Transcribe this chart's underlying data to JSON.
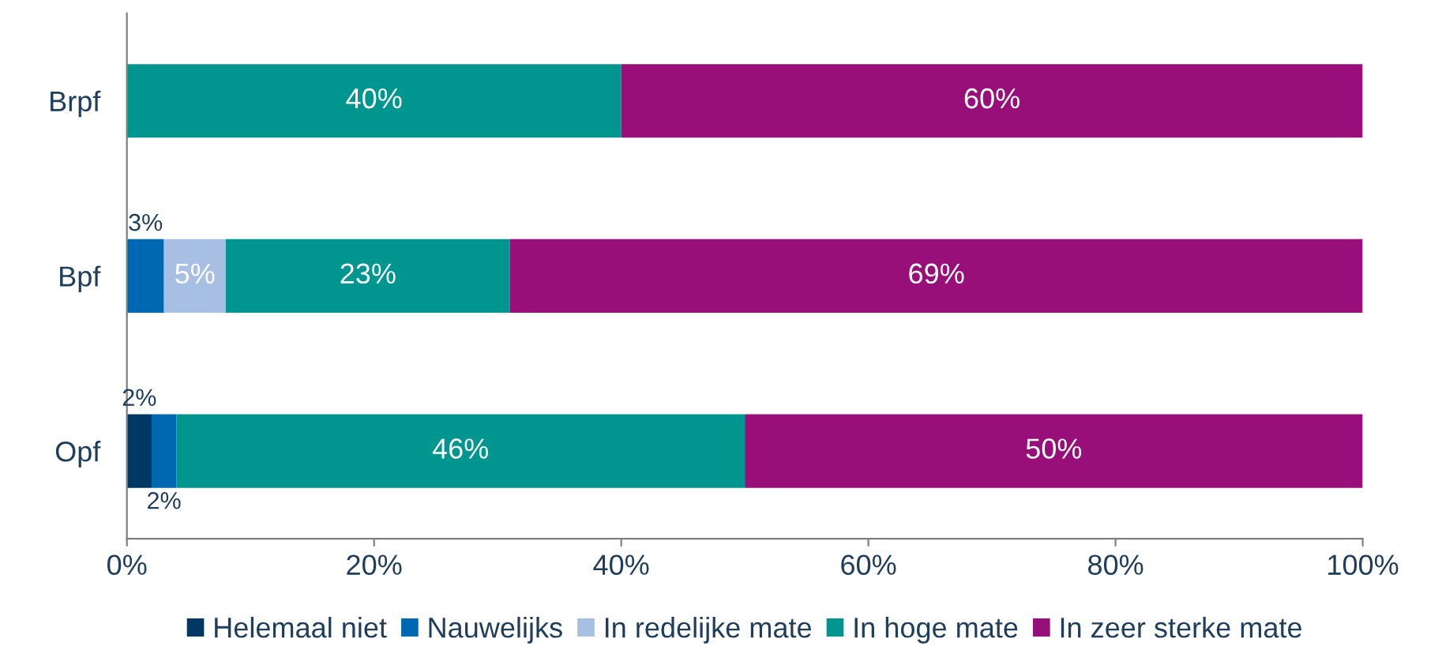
{
  "chart_data": {
    "type": "bar",
    "orientation": "horizontal",
    "stacked": true,
    "categories": [
      "Brpf",
      "Bpf",
      "Opf"
    ],
    "series": [
      {
        "name": "Helemaal niet",
        "color": "#003865",
        "values": [
          0,
          0,
          2
        ],
        "value_labels": [
          null,
          null,
          "2%"
        ]
      },
      {
        "name": "Nauwelijks",
        "color": "#0067b1",
        "values": [
          0,
          3,
          2
        ],
        "value_labels": [
          null,
          "3%",
          "2%"
        ]
      },
      {
        "name": "In redelijke mate",
        "color": "#a6bfe3",
        "values": [
          0,
          5,
          0
        ],
        "value_labels": [
          null,
          "5%",
          null
        ]
      },
      {
        "name": "In hoge mate",
        "color": "#009690",
        "values": [
          40,
          23,
          46
        ],
        "value_labels": [
          "40%",
          "23%",
          "46%"
        ]
      },
      {
        "name": "In zeer sterke mate",
        "color": "#990f7a",
        "values": [
          60,
          69,
          50
        ],
        "value_labels": [
          "60%",
          "69%",
          "50%"
        ]
      }
    ],
    "xlim": [
      0,
      100
    ],
    "xticks": [
      {
        "value": 0,
        "label": "0%"
      },
      {
        "value": 20,
        "label": "20%"
      },
      {
        "value": 40,
        "label": "40%"
      },
      {
        "value": 60,
        "label": "60%"
      },
      {
        "value": 80,
        "label": "80%"
      },
      {
        "value": 100,
        "label": "100%"
      }
    ],
    "grid": false,
    "legend": "bottom"
  }
}
